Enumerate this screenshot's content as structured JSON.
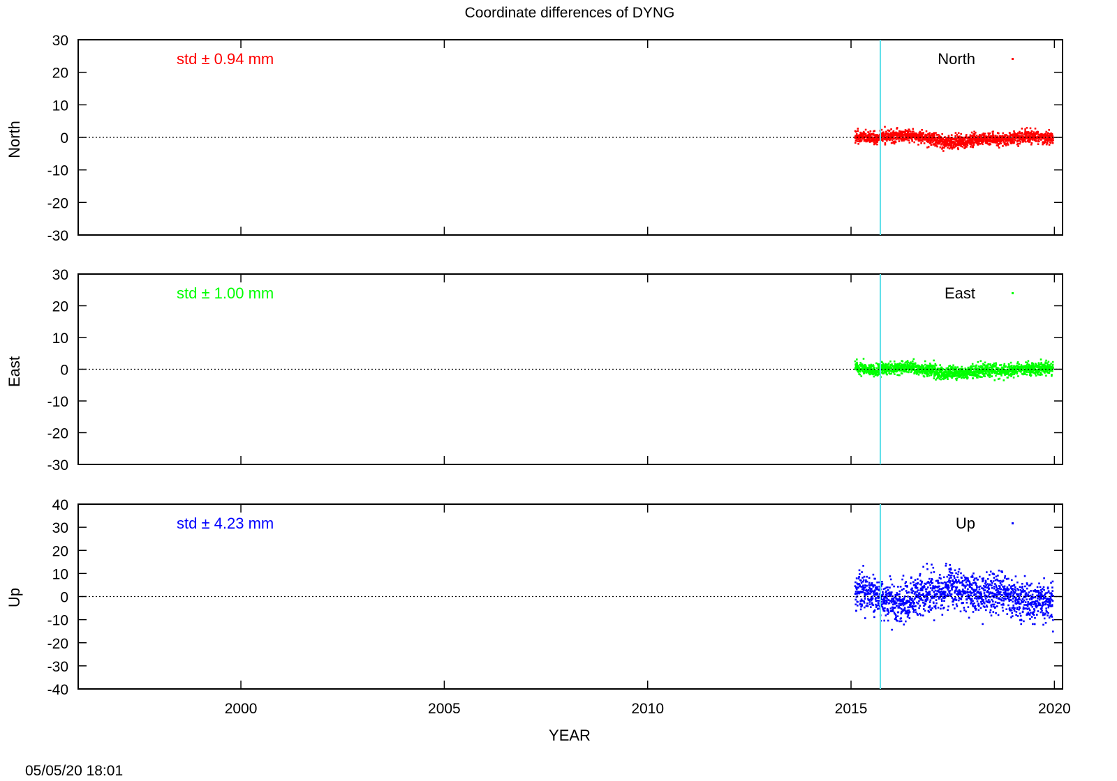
{
  "timestamp": "05/05/20 18:01",
  "colors": {
    "axis": "#000000",
    "event_line": "#5fe0ea",
    "zero_line": "#000000"
  },
  "chart_data": {
    "type": "scatter",
    "title": "Coordinate differences of DYNG",
    "xlabel": "YEAR",
    "xlim": [
      1996.0,
      2020.2
    ],
    "xticks": [
      2000,
      2005,
      2010,
      2015,
      2020
    ],
    "xtick_labels": [
      "2000",
      "2005",
      "2010",
      "2015",
      "2020"
    ],
    "event_lines_x": [
      2015.72
    ],
    "data_x_range": [
      2015.1,
      2019.97
    ],
    "grid": false,
    "legend_position": "top-right",
    "panels": [
      {
        "name": "North",
        "ylabel": "North",
        "ylim": [
          -30,
          30
        ],
        "yticks": [
          -30,
          -20,
          -10,
          0,
          10,
          20,
          30
        ],
        "ytick_labels": [
          "-30",
          "-20",
          "-10",
          "0",
          "10",
          "20",
          "30"
        ],
        "std_text": "std ± 0.94 mm",
        "legend": "North",
        "color": "#ff0000",
        "std": 0.94,
        "trend": [
          [
            2015.1,
            0.4
          ],
          [
            2015.6,
            0.0
          ],
          [
            2016.0,
            0.5
          ],
          [
            2016.5,
            0.5
          ],
          [
            2017.0,
            -0.3
          ],
          [
            2017.3,
            -1.6
          ],
          [
            2017.8,
            -1.2
          ],
          [
            2018.3,
            -0.4
          ],
          [
            2018.8,
            -0.7
          ],
          [
            2019.3,
            0.3
          ],
          [
            2019.97,
            0.0
          ]
        ]
      },
      {
        "name": "East",
        "ylabel": "East",
        "ylim": [
          -30,
          30
        ],
        "yticks": [
          -30,
          -20,
          -10,
          0,
          10,
          20,
          30
        ],
        "ytick_labels": [
          "-30",
          "-20",
          "-10",
          "0",
          "10",
          "20",
          "30"
        ],
        "std_text": "std ± 1.00 mm",
        "legend": "East",
        "color": "#00ff00",
        "std": 1.0,
        "trend": [
          [
            2015.1,
            0.5
          ],
          [
            2015.6,
            -0.2
          ],
          [
            2016.0,
            0.4
          ],
          [
            2016.5,
            0.6
          ],
          [
            2017.0,
            -0.3
          ],
          [
            2017.3,
            -1.5
          ],
          [
            2017.8,
            -1.2
          ],
          [
            2018.3,
            -0.3
          ],
          [
            2018.8,
            -0.6
          ],
          [
            2019.3,
            0.4
          ],
          [
            2019.97,
            0.1
          ]
        ]
      },
      {
        "name": "Up",
        "ylabel": "Up",
        "ylim": [
          -40,
          40
        ],
        "yticks": [
          -40,
          -30,
          -20,
          -10,
          0,
          10,
          20,
          30,
          40
        ],
        "ytick_labels": [
          "-40",
          "-30",
          "-20",
          "-10",
          "0",
          "10",
          "20",
          "30",
          "40"
        ],
        "std_text": "std ± 4.23 mm",
        "legend": "Up",
        "color": "#0000ff",
        "std": 4.23,
        "trend": [
          [
            2015.1,
            1.5
          ],
          [
            2015.5,
            2.0
          ],
          [
            2015.8,
            -1.0
          ],
          [
            2016.2,
            -4.0
          ],
          [
            2016.45,
            -1.0
          ],
          [
            2016.9,
            2.0
          ],
          [
            2017.5,
            3.5
          ],
          [
            2017.9,
            1.5
          ],
          [
            2018.4,
            1.0
          ],
          [
            2018.7,
            2.5
          ],
          [
            2019.0,
            0.0
          ],
          [
            2019.4,
            -2.0
          ],
          [
            2019.97,
            -1.5
          ]
        ]
      }
    ]
  }
}
